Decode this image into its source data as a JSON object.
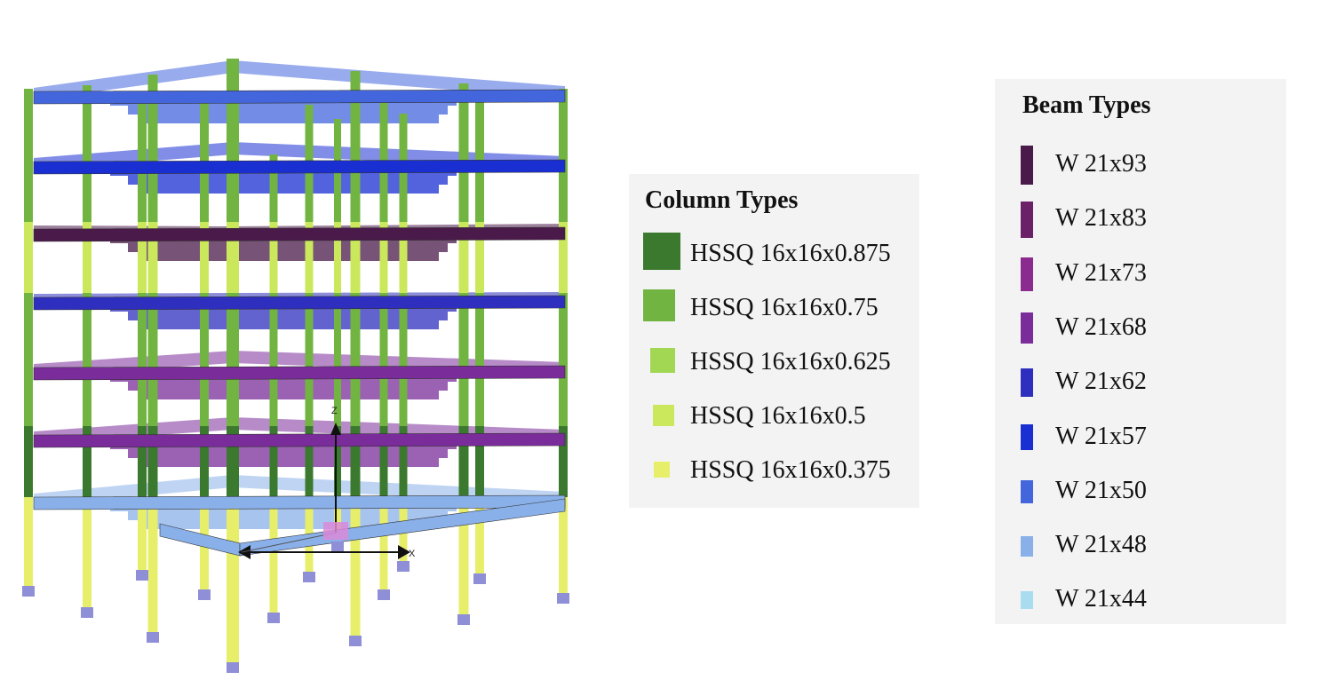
{
  "column_legend": {
    "title": "Column Types",
    "items": [
      {
        "label": "HSSQ 16x16x0.875",
        "color": "#3b7a2e"
      },
      {
        "label": "HSSQ 16x16x0.75",
        "color": "#72b441"
      },
      {
        "label": "HSSQ 16x16x0.625",
        "color": "#a2d754"
      },
      {
        "label": "HSSQ 16x16x0.5",
        "color": "#cbe85d"
      },
      {
        "label": "HSSQ 16x16x0.375",
        "color": "#e7ef6a"
      }
    ]
  },
  "beam_legend": {
    "title": "Beam Types",
    "items": [
      {
        "label": "W 21x93",
        "color": "#4a1a4a"
      },
      {
        "label": "W 21x83",
        "color": "#6a2168"
      },
      {
        "label": "W 21x73",
        "color": "#8b2a8f"
      },
      {
        "label": "W 21x68",
        "color": "#7a2c9a"
      },
      {
        "label": "W 21x62",
        "color": "#2f2fbf"
      },
      {
        "label": "W 21x57",
        "color": "#1a2fd1"
      },
      {
        "label": "W 21x50",
        "color": "#4466dd"
      },
      {
        "label": "W 21x48",
        "color": "#8ab0ea"
      },
      {
        "label": "W 21x44",
        "color": "#a8dcef"
      }
    ]
  },
  "model": {
    "floor_beam_colors": [
      "#8ab0ea",
      "#7a2c9a",
      "#7a2c9a",
      "#2f2fbf",
      "#4a1a4a",
      "#1a2fd1",
      "#4466dd"
    ],
    "column_colors": {
      "lower": "#e7ef6a",
      "upper": "#72b441",
      "mid": "#cbe85d",
      "dark": "#3b7a2e"
    },
    "support_color": "#8f8fd8",
    "axis_labels": {
      "x": "X",
      "z": "Z"
    }
  }
}
